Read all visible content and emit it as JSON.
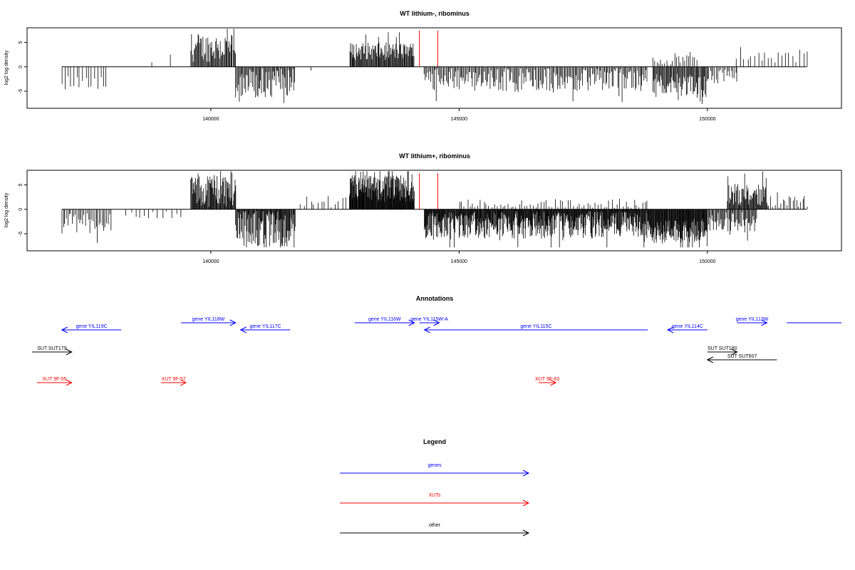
{
  "colors": {
    "genes": "#0000ff",
    "xuts": "#ff0000",
    "other": "#000000",
    "marker": "#ff0000"
  },
  "chart_data": [
    {
      "type": "bar",
      "title": "WT lithium-, ribominus",
      "ylabel": "log2 log density",
      "ylim": [
        -8.5,
        8
      ],
      "xlim": [
        136300,
        152700
      ],
      "xticks": [
        140000,
        145000,
        150000
      ],
      "xtick_labels": [
        "140000",
        "145000",
        "150000"
      ],
      "yticks": [
        -5,
        0,
        5
      ],
      "ytick_labels": [
        "-5",
        "0",
        "5"
      ],
      "markers": [
        144200,
        144570
      ],
      "regions": [
        {
          "start": 137000,
          "end": 137900,
          "sign": -1,
          "base": 3.0,
          "var": 1.6,
          "step": 60
        },
        {
          "start": 138800,
          "end": 138800,
          "sign": 1,
          "base": 0.9,
          "var": 0.1,
          "step": 100
        },
        {
          "start": 139200,
          "end": 139200,
          "sign": 1,
          "base": 2.5,
          "var": 0.1,
          "step": 100
        },
        {
          "start": 139600,
          "end": 140500,
          "sign": 1,
          "base": 4.0,
          "var": 3.0,
          "step": 16
        },
        {
          "start": 140500,
          "end": 141700,
          "sign": -1,
          "base": 3.3,
          "var": 3.0,
          "step": 18
        },
        {
          "start": 142000,
          "end": 142000,
          "sign": -1,
          "base": 0.8,
          "var": 0.1,
          "step": 100
        },
        {
          "start": 142800,
          "end": 144100,
          "sign": 1,
          "base": 3.2,
          "var": 1.8,
          "step": 14
        },
        {
          "start": 144300,
          "end": 148800,
          "sign": -1,
          "base": 2.6,
          "var": 2.5,
          "step": 22
        },
        {
          "start": 148900,
          "end": 149800,
          "sign": 1,
          "base": 1.5,
          "var": 1.3,
          "step": 40
        },
        {
          "start": 148900,
          "end": 150000,
          "sign": -1,
          "base": 3.8,
          "var": 2.4,
          "step": 16
        },
        {
          "start": 150000,
          "end": 150600,
          "sign": -1,
          "base": 2.0,
          "var": 1.5,
          "step": 30
        },
        {
          "start": 150600,
          "end": 152000,
          "sign": 1,
          "base": 1.8,
          "var": 1.2,
          "step": 70
        }
      ]
    },
    {
      "type": "bar",
      "title": "WT lithium+, ribominus",
      "ylabel": "log2 log density",
      "ylim": [
        -8.5,
        8
      ],
      "xlim": [
        136300,
        152700
      ],
      "xticks": [
        140000,
        145000,
        150000
      ],
      "xtick_labels": [
        "140000",
        "145000",
        "150000"
      ],
      "yticks": [
        -5,
        0,
        5
      ],
      "ytick_labels": [
        "-5",
        "0",
        "5"
      ],
      "markers": [
        144200,
        144570
      ],
      "regions": [
        {
          "start": 137000,
          "end": 138000,
          "sign": -1,
          "base": 3.0,
          "var": 2.2,
          "step": 30
        },
        {
          "start": 138300,
          "end": 139400,
          "sign": -1,
          "base": 1.2,
          "var": 0.8,
          "step": 90
        },
        {
          "start": 139600,
          "end": 140500,
          "sign": 1,
          "base": 4.0,
          "var": 3.5,
          "step": 12
        },
        {
          "start": 140500,
          "end": 141700,
          "sign": -1,
          "base": 4.0,
          "var": 3.8,
          "step": 12
        },
        {
          "start": 141800,
          "end": 142800,
          "sign": 1,
          "base": 1.6,
          "var": 1.2,
          "step": 70
        },
        {
          "start": 142800,
          "end": 144100,
          "sign": 1,
          "base": 4.3,
          "var": 2.8,
          "step": 9
        },
        {
          "start": 144300,
          "end": 148800,
          "sign": -1,
          "base": 3.2,
          "var": 2.8,
          "step": 10
        },
        {
          "start": 145000,
          "end": 148800,
          "sign": 1,
          "base": 1.0,
          "var": 1.2,
          "step": 55
        },
        {
          "start": 148800,
          "end": 150000,
          "sign": -1,
          "base": 4.5,
          "var": 2.5,
          "step": 10
        },
        {
          "start": 150000,
          "end": 151000,
          "sign": -1,
          "base": 2.5,
          "var": 2.0,
          "step": 18
        },
        {
          "start": 150400,
          "end": 151200,
          "sign": 1,
          "base": 3.0,
          "var": 2.2,
          "step": 14
        },
        {
          "start": 151200,
          "end": 152000,
          "sign": 1,
          "base": 1.5,
          "var": 1.3,
          "step": 40
        }
      ]
    }
  ],
  "annotations": {
    "title": "Annotations",
    "features": [
      {
        "label": "gene YIL119C",
        "start": 137000,
        "end": 138200,
        "strand": "-",
        "type": "genes",
        "row": 1
      },
      {
        "label": "gene YIL118W",
        "start": 139400,
        "end": 140500,
        "strand": "+",
        "type": "genes",
        "row": 0
      },
      {
        "label": "gene YIL117C",
        "start": 140600,
        "end": 141600,
        "strand": "-",
        "type": "genes",
        "row": 1
      },
      {
        "label": "gene YIL116W",
        "start": 142900,
        "end": 144100,
        "strand": "+",
        "type": "genes",
        "row": 0
      },
      {
        "label": "gene YIL115W-A",
        "start": 144200,
        "end": 144600,
        "strand": "+",
        "type": "genes",
        "row": 0
      },
      {
        "label": "gene YIL115C",
        "start": 144300,
        "end": 148800,
        "strand": "-",
        "type": "genes",
        "row": 1
      },
      {
        "label": "gene YIL114C",
        "start": 149200,
        "end": 150000,
        "strand": "-",
        "type": "genes",
        "row": 1
      },
      {
        "label": "gene YIL113W",
        "start": 150600,
        "end": 151200,
        "strand": "+",
        "type": "genes",
        "row": 0
      },
      {
        "label": "",
        "start": 151600,
        "end": 152700,
        "strand": ".",
        "type": "genes",
        "row": 0
      },
      {
        "label": "SUT SUT179",
        "start": 136400,
        "end": 137200,
        "strand": "+",
        "type": "other",
        "row": 2
      },
      {
        "label": "SUT SUT180",
        "start": 150000,
        "end": 150600,
        "strand": "+",
        "type": "other",
        "row": 2
      },
      {
        "label": "SUT SUT607",
        "start": 150000,
        "end": 151400,
        "strand": "-",
        "type": "other",
        "row": 3
      },
      {
        "label": "XUT 9F-55",
        "start": 136500,
        "end": 137200,
        "strand": "+",
        "type": "xuts",
        "row": 4
      },
      {
        "label": "XUT 9F-57",
        "start": 139000,
        "end": 139500,
        "strand": "+",
        "type": "xuts",
        "row": 4
      },
      {
        "label": "XUT 9F-63",
        "start": 146600,
        "end": 146950,
        "strand": "+",
        "type": "xuts",
        "row": 4
      }
    ]
  },
  "legend": {
    "title": "Legend",
    "items": [
      {
        "label": "genes",
        "type": "genes"
      },
      {
        "label": "XUTs",
        "type": "xuts"
      },
      {
        "label": "other",
        "type": "other"
      }
    ]
  }
}
